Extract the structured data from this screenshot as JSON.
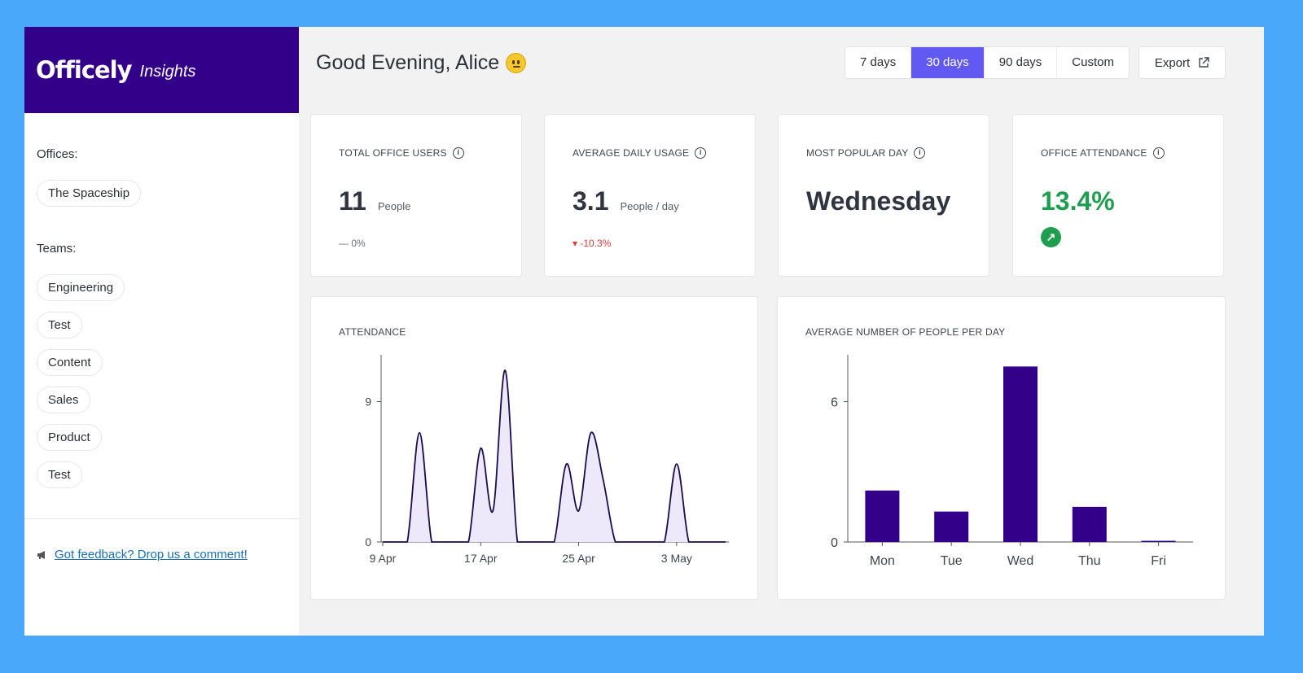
{
  "brand": {
    "name": "Officely",
    "sub": "Insights"
  },
  "sidebar": {
    "offices_label": "Offices:",
    "offices": [
      "The Spaceship"
    ],
    "teams_label": "Teams:",
    "teams": [
      "Engineering",
      "Test",
      "Content",
      "Sales",
      "Product",
      "Test"
    ],
    "feedback": "Got feedback? Drop us a comment!"
  },
  "header": {
    "greeting": "Good Evening, Alice",
    "ranges": [
      "7 days",
      "30 days",
      "90 days",
      "Custom"
    ],
    "active_range": "30 days",
    "export_label": "Export"
  },
  "stats": [
    {
      "title": "TOTAL OFFICE USERS",
      "value": "11",
      "unit": "People",
      "delta": "— 0%"
    },
    {
      "title": "AVERAGE DAILY USAGE",
      "value": "3.1",
      "unit": "People / day",
      "delta": "▾ -10.3%"
    },
    {
      "title": "MOST POPULAR DAY",
      "value": "Wednesday"
    },
    {
      "title": "OFFICE ATTENDANCE",
      "value": "13.4%"
    }
  ],
  "colors": {
    "brand": "#33008a",
    "accent": "#6159f2",
    "positive": "#1e9e4e",
    "negative": "#e0393e",
    "bar": "#33008a"
  },
  "chart_data": [
    {
      "type": "area",
      "title": "ATTENDANCE",
      "x_ticks": [
        "9 Apr",
        "17 Apr",
        "25 Apr",
        "3 May"
      ],
      "y_ticks": [
        0,
        9
      ],
      "ylim": [
        0,
        12
      ],
      "x": [
        "2023-04-09",
        "2023-04-10",
        "2023-04-11",
        "2023-04-12",
        "2023-04-13",
        "2023-04-14",
        "2023-04-15",
        "2023-04-16",
        "2023-04-17",
        "2023-04-18",
        "2023-04-19",
        "2023-04-20",
        "2023-04-21",
        "2023-04-22",
        "2023-04-23",
        "2023-04-24",
        "2023-04-25",
        "2023-04-26",
        "2023-04-27",
        "2023-04-28",
        "2023-04-29",
        "2023-04-30",
        "2023-05-01",
        "2023-05-02",
        "2023-05-03",
        "2023-05-04",
        "2023-05-05",
        "2023-05-06",
        "2023-05-07"
      ],
      "values": [
        0,
        0,
        0,
        7,
        0,
        0,
        0,
        0,
        6,
        2,
        11,
        0,
        0,
        0,
        0,
        5,
        2,
        7,
        4,
        0,
        0,
        0,
        0,
        0,
        5,
        0,
        0,
        0,
        0
      ]
    },
    {
      "type": "bar",
      "title": "AVERAGE NUMBER OF PEOPLE PER DAY",
      "categories": [
        "Mon",
        "Tue",
        "Wed",
        "Thu",
        "Fri"
      ],
      "values": [
        2.2,
        1.3,
        7.5,
        1.5,
        0.05
      ],
      "y_ticks": [
        0,
        6
      ],
      "ylim": [
        0,
        8
      ]
    }
  ]
}
